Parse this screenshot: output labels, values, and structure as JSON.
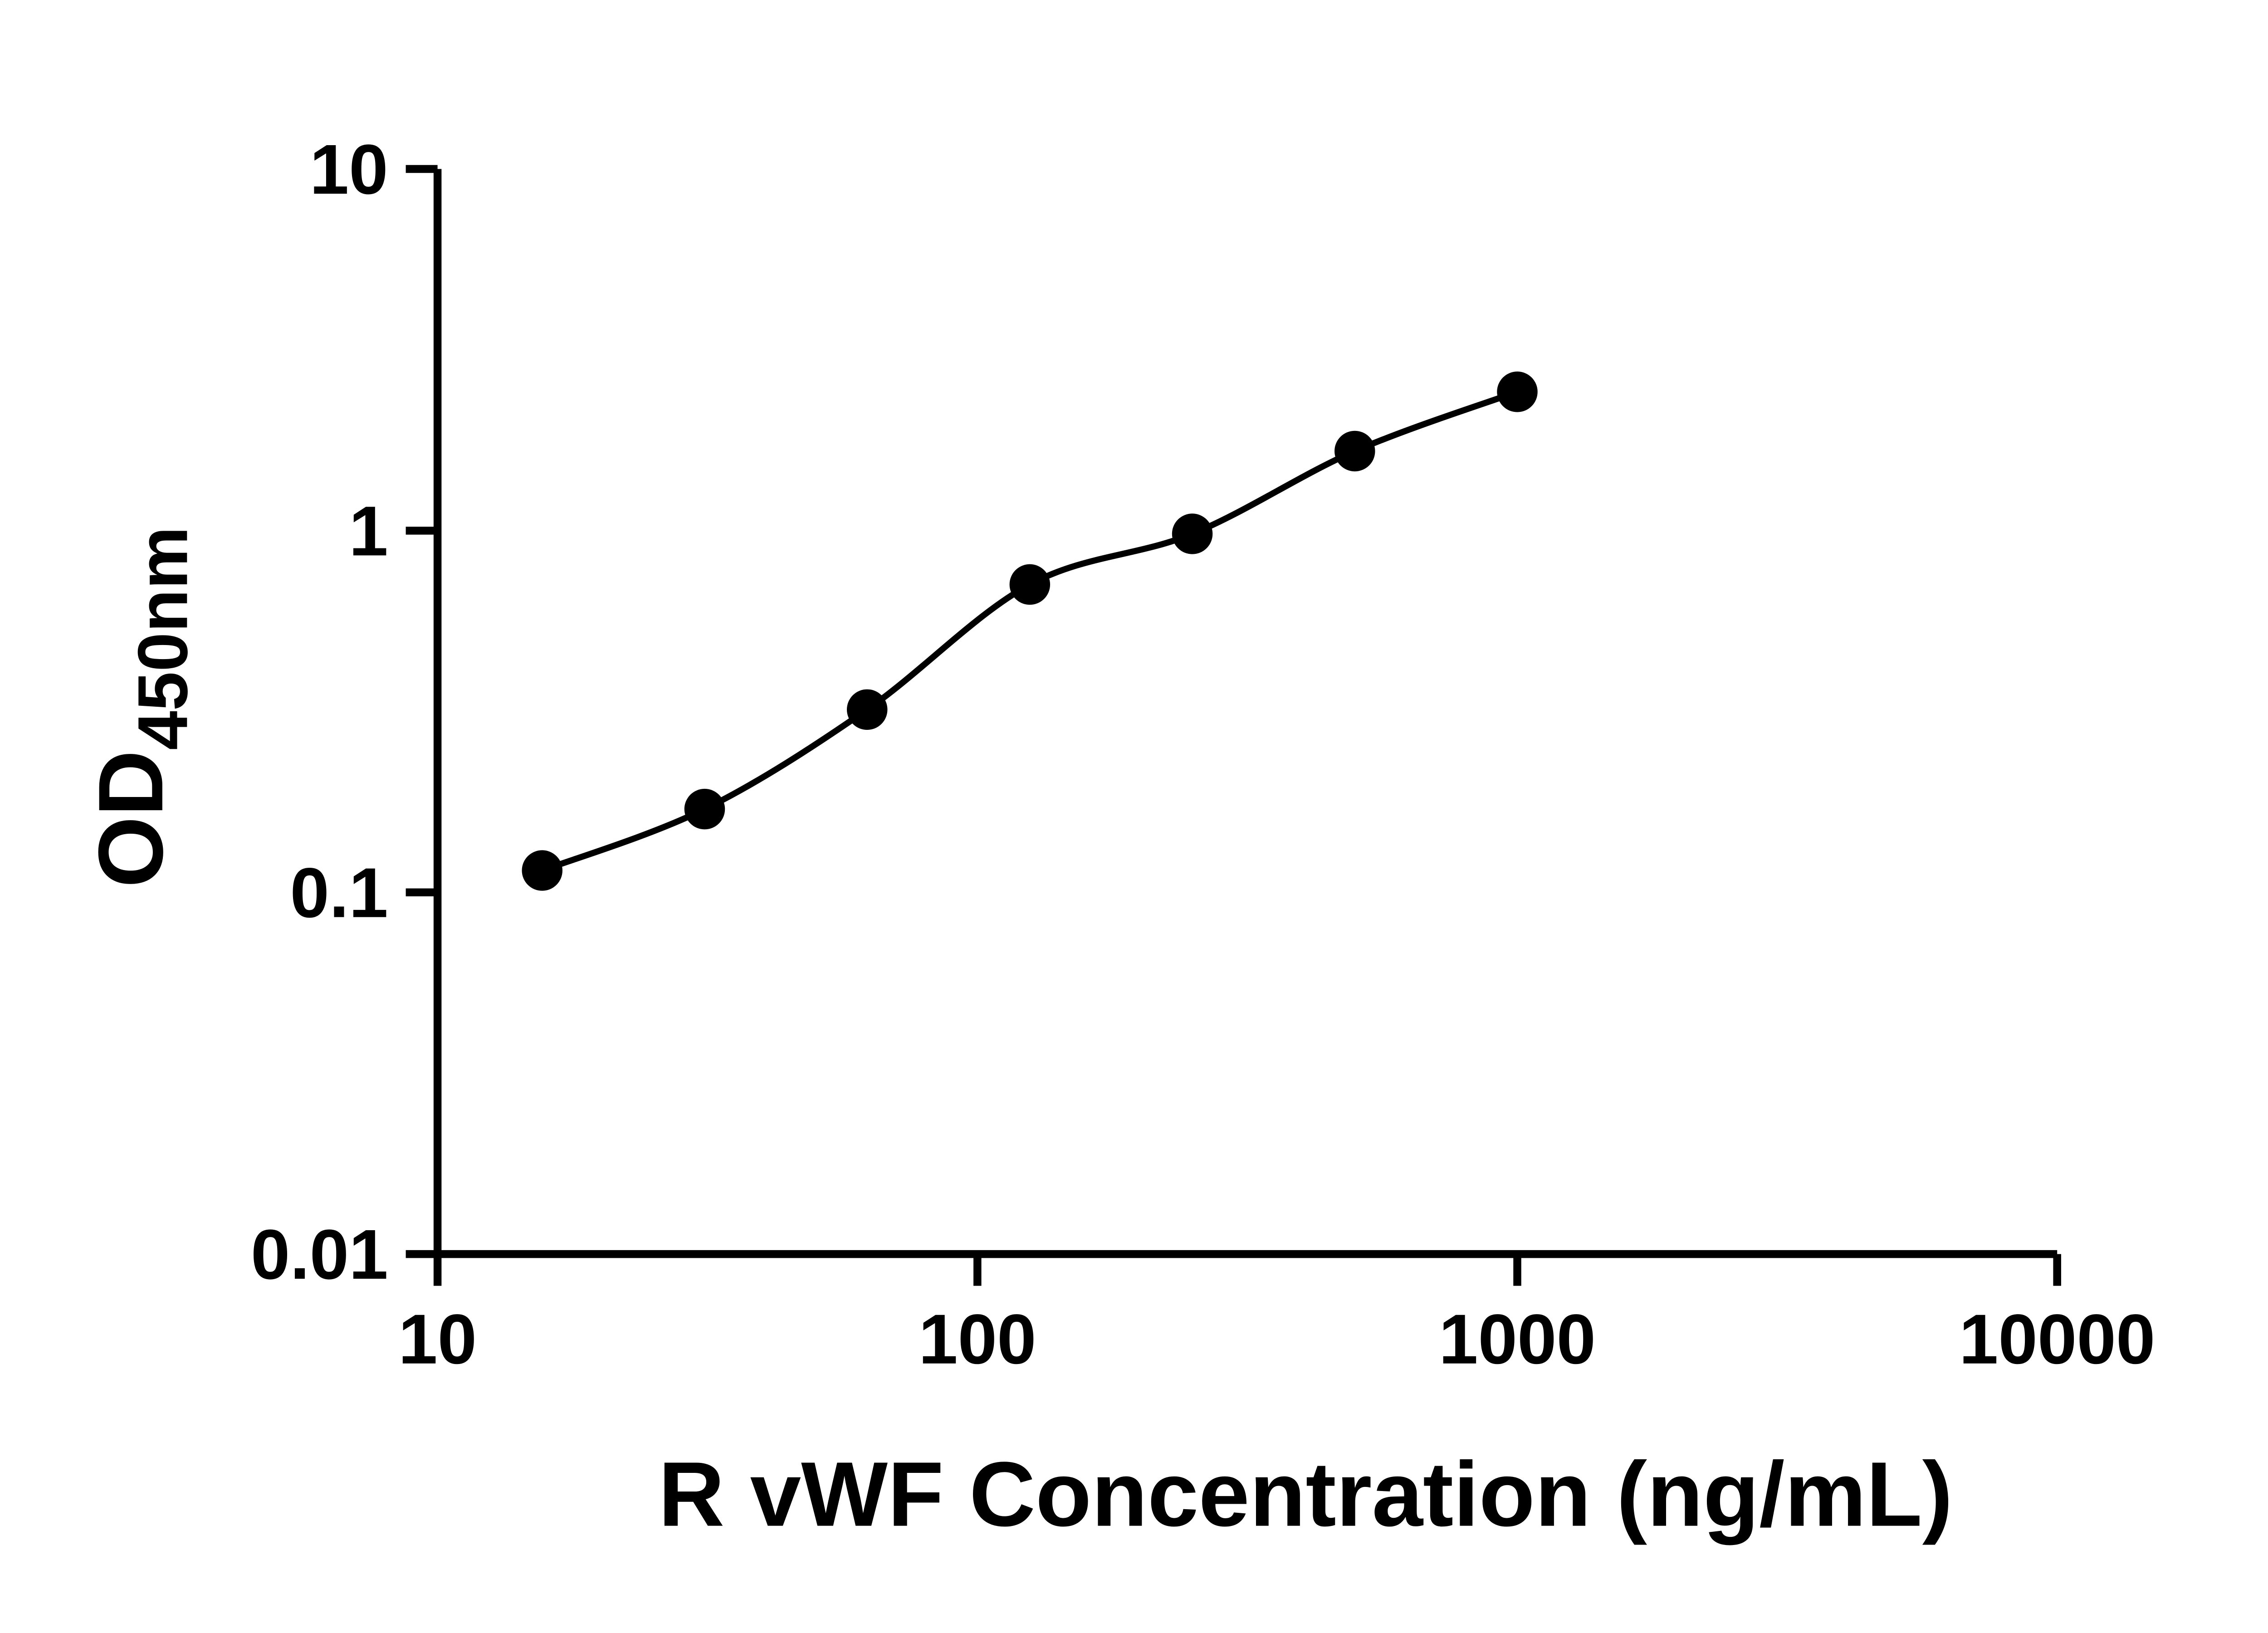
{
  "figure": {
    "background": "#ffffff",
    "axis_color": "#000000"
  },
  "chart_data": {
    "type": "scatter",
    "title": "",
    "xlabel": "R vWF Concentration (ng/mL)",
    "ylabel": "OD450nm",
    "ylabel_main": "OD",
    "ylabel_sub": "450nm",
    "x_scale": "log10",
    "y_scale": "log10",
    "xlim": [
      10,
      10000
    ],
    "ylim": [
      0.01,
      10
    ],
    "x_ticks": [
      "10",
      "100",
      "1000",
      "10000"
    ],
    "y_ticks": [
      "0.01",
      "0.1",
      "1",
      "10"
    ],
    "grid": false,
    "legend": "none",
    "marker": {
      "shape": "circle",
      "color": "#000000"
    },
    "curve": {
      "style": "smooth-fit-through-points",
      "color": "#000000"
    },
    "x": [
      15.625,
      31.25,
      62.5,
      125,
      250,
      500,
      1000
    ],
    "y": [
      0.115,
      0.17,
      0.32,
      0.71,
      0.98,
      1.66,
      2.42
    ]
  }
}
